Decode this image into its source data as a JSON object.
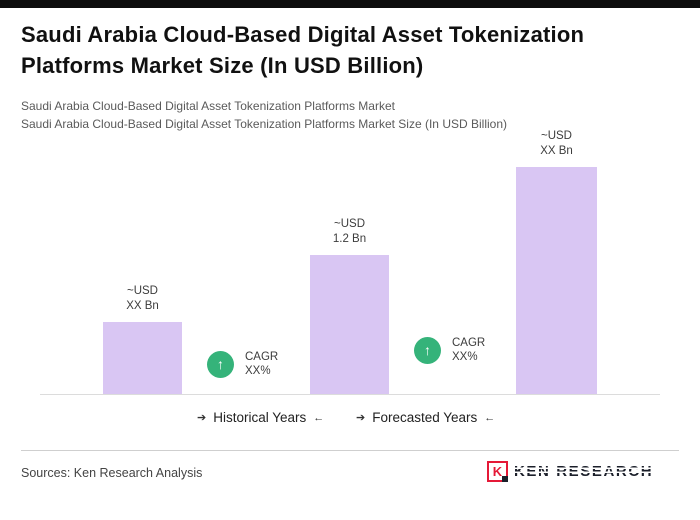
{
  "header": {
    "title": "Saudi Arabia Cloud-Based Digital Asset Tokenization Platforms Market Size (In USD Billion)",
    "subtitle_line1": "Saudi Arabia Cloud-Based Digital Asset Tokenization Platforms Market",
    "subtitle_line2": "Saudi Arabia Cloud-Based Digital Asset Tokenization Platforms Market Size (In USD Billion)"
  },
  "chart_data": {
    "type": "bar",
    "title": "Saudi Arabia Cloud-Based Digital Asset Tokenization Platforms Market Size (In USD Billion)",
    "unit": "USD Bn",
    "bar_color": "#d9c6f3",
    "grid": false,
    "legend": "none",
    "ylim": [
      0,
      2.0
    ],
    "bars": [
      {
        "label_line1": "~USD",
        "label_line2": "XX Bn",
        "value_est": 0.62
      },
      {
        "label_line1": "~USD",
        "label_line2": "1.2 Bn",
        "value_est": 1.2
      },
      {
        "label_line1": "~USD",
        "label_line2": "XX Bn",
        "value_est": 1.95
      }
    ],
    "badges": [
      {
        "line1": "CAGR",
        "line2": "XX%"
      },
      {
        "line1": "CAGR",
        "line2": "XX%"
      }
    ],
    "period_labels": [
      {
        "text": "Historical Years"
      },
      {
        "text": "Forecasted Years"
      }
    ]
  },
  "icons": {
    "up_arrow": "↑",
    "right_arrow": "➔",
    "left_arrow": "←"
  },
  "colors": {
    "bar": "#d9c6f3",
    "badge_green": "#35b37a",
    "logo_red": "#e51937"
  },
  "footer": {
    "sources": "Sources: Ken Research Analysis",
    "logo_letter": "K",
    "logo_text": "KEN RESEARCH"
  }
}
